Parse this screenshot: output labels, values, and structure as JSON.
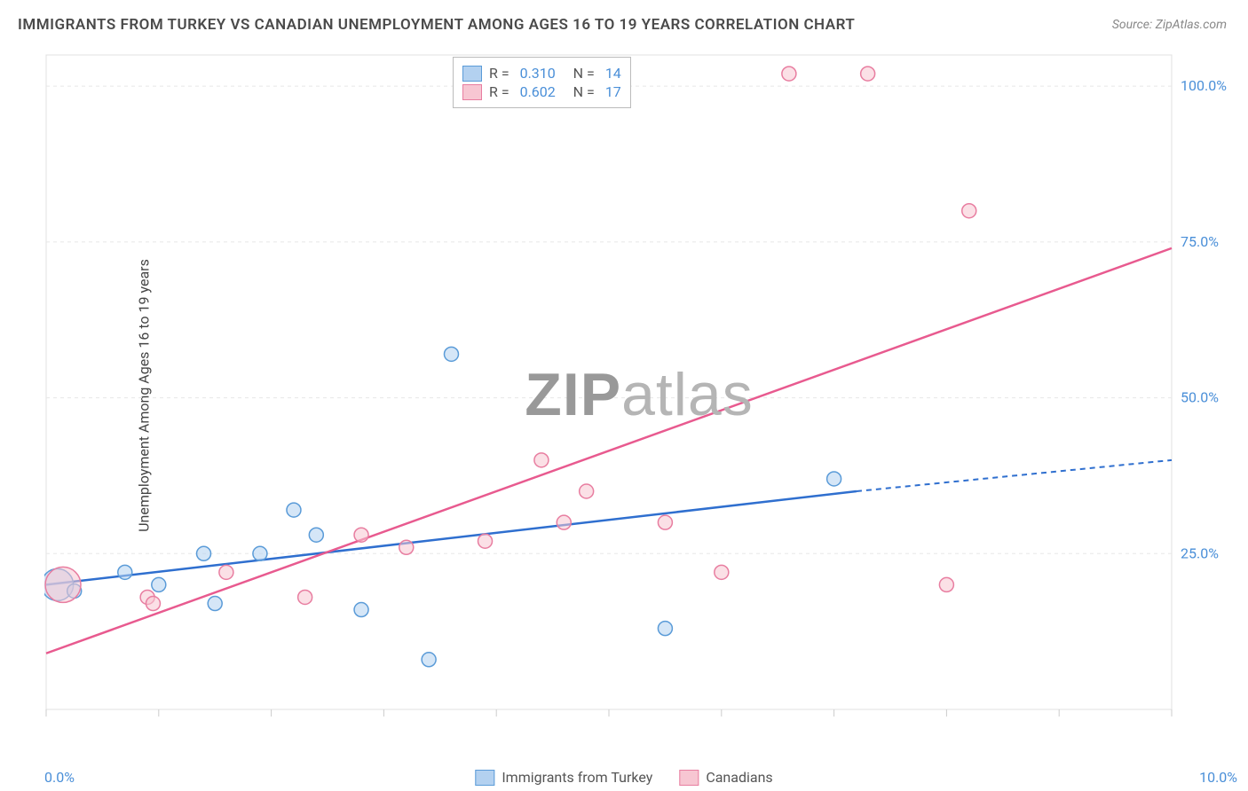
{
  "title": "IMMIGRANTS FROM TURKEY VS CANADIAN UNEMPLOYMENT AMONG AGES 16 TO 19 YEARS CORRELATION CHART",
  "source_prefix": "Source: ",
  "source": "ZipAtlas.com",
  "ylabel": "Unemployment Among Ages 16 to 19 years",
  "watermark_bold": "ZIP",
  "watermark_light": "atlas",
  "chart": {
    "type": "scatter",
    "background_color": "#ffffff",
    "grid_color": "#e8e8e8",
    "axis_color": "#e0e0e0",
    "tick_color": "#cccccc",
    "xlim": [
      0,
      10
    ],
    "ylim": [
      0,
      105
    ],
    "x_ticks": [
      0,
      1,
      2,
      3,
      4,
      5,
      6,
      7,
      8,
      9,
      10
    ],
    "y_gridlines": [
      25,
      50,
      75,
      100
    ],
    "y_right_labels": [
      "25.0%",
      "50.0%",
      "75.0%",
      "100.0%"
    ],
    "x_left_label": "0.0%",
    "x_right_label": "10.0%",
    "series": [
      {
        "id": "turkey",
        "label": "Immigrants from Turkey",
        "r_value": "0.310",
        "n_value": "14",
        "fill": "#b3d1f0",
        "stroke": "#5a9bd8",
        "line_color": "#2f6fcf",
        "points": [
          {
            "x": 0.1,
            "y": 20,
            "r": 18
          },
          {
            "x": 0.25,
            "y": 19,
            "r": 8
          },
          {
            "x": 0.7,
            "y": 22,
            "r": 8
          },
          {
            "x": 1.0,
            "y": 20,
            "r": 8
          },
          {
            "x": 1.4,
            "y": 25,
            "r": 8
          },
          {
            "x": 1.5,
            "y": 17,
            "r": 8
          },
          {
            "x": 1.9,
            "y": 25,
            "r": 8
          },
          {
            "x": 2.2,
            "y": 32,
            "r": 8
          },
          {
            "x": 2.4,
            "y": 28,
            "r": 8
          },
          {
            "x": 2.8,
            "y": 16,
            "r": 8
          },
          {
            "x": 3.4,
            "y": 8,
            "r": 8
          },
          {
            "x": 3.6,
            "y": 57,
            "r": 8
          },
          {
            "x": 5.5,
            "y": 13,
            "r": 8
          },
          {
            "x": 7.0,
            "y": 37,
            "r": 8
          }
        ],
        "trend": {
          "x1": 0,
          "y1": 20,
          "x2": 7.2,
          "y2": 35,
          "dash_x1": 7.2,
          "dash_y1": 35,
          "dash_x2": 10,
          "dash_y2": 40
        }
      },
      {
        "id": "canadians",
        "label": "Canadians",
        "r_value": "0.602",
        "n_value": "17",
        "fill": "#f7c6d2",
        "stroke": "#e87da0",
        "line_color": "#e85a8f",
        "points": [
          {
            "x": 0.15,
            "y": 20,
            "r": 20
          },
          {
            "x": 0.9,
            "y": 18,
            "r": 8
          },
          {
            "x": 0.95,
            "y": 17,
            "r": 8
          },
          {
            "x": 1.6,
            "y": 22,
            "r": 8
          },
          {
            "x": 2.3,
            "y": 18,
            "r": 8
          },
          {
            "x": 2.8,
            "y": 28,
            "r": 8
          },
          {
            "x": 3.2,
            "y": 26,
            "r": 8
          },
          {
            "x": 3.9,
            "y": 27,
            "r": 8
          },
          {
            "x": 4.4,
            "y": 40,
            "r": 8
          },
          {
            "x": 4.6,
            "y": 30,
            "r": 8
          },
          {
            "x": 4.8,
            "y": 35,
            "r": 8
          },
          {
            "x": 5.5,
            "y": 30,
            "r": 8
          },
          {
            "x": 6.0,
            "y": 22,
            "r": 8
          },
          {
            "x": 6.6,
            "y": 102,
            "r": 8
          },
          {
            "x": 7.3,
            "y": 102,
            "r": 8
          },
          {
            "x": 8.2,
            "y": 80,
            "r": 8
          },
          {
            "x": 8.0,
            "y": 20,
            "r": 8
          }
        ],
        "trend": {
          "x1": 0,
          "y1": 9,
          "x2": 10,
          "y2": 74
        }
      }
    ]
  },
  "legend_r_label": "R  =",
  "legend_n_label": "N  ="
}
